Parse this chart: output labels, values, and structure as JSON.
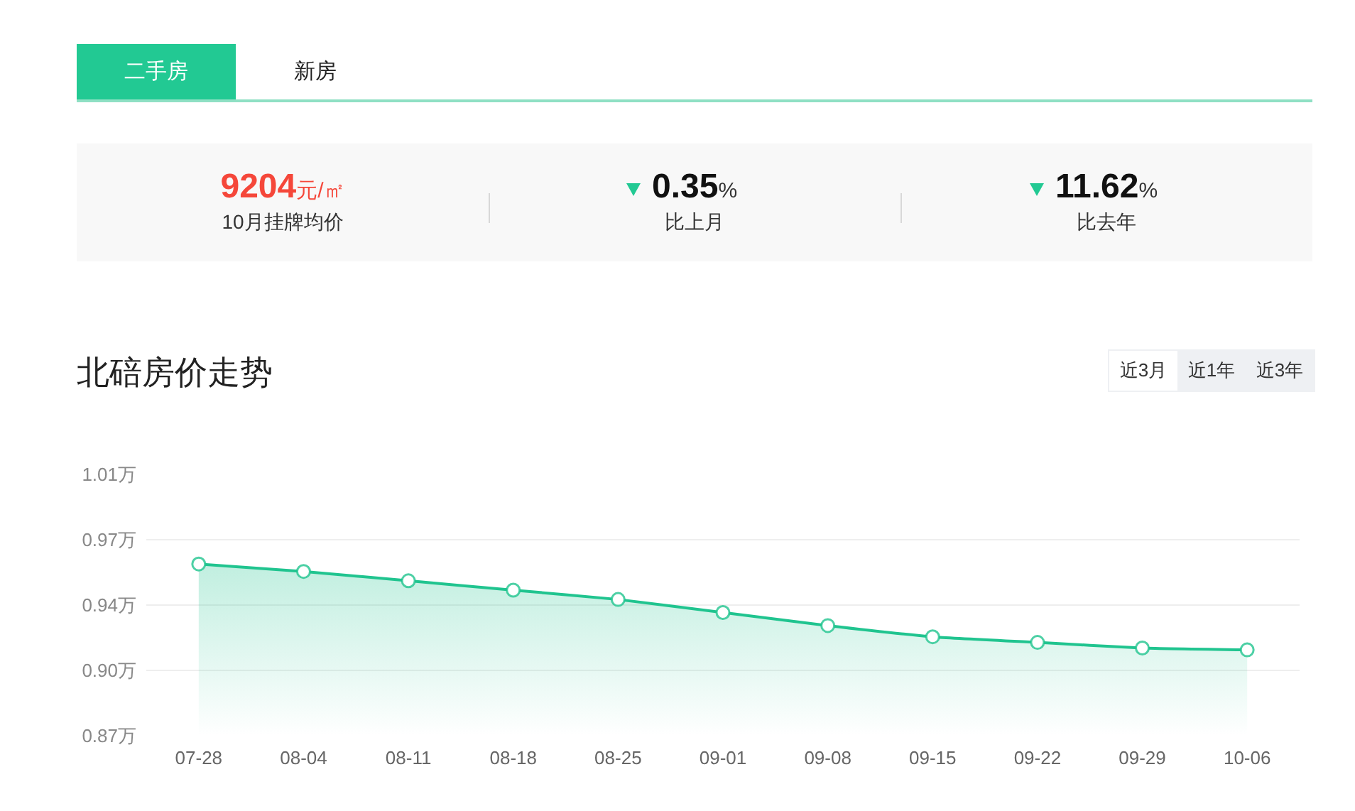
{
  "chart_data": [
    {
      "type": "other",
      "annotations": [
        "二手房",
        "新房",
        "9204元/㎡",
        "10月挂牌均价",
        "0.35%",
        "比上月",
        "11.62%",
        "比去年"
      ]
    },
    {
      "type": "area",
      "title": "北碚房价走势",
      "annotations": [
        "近3月",
        "近1年",
        "近3年"
      ],
      "categories": [
        "07-28",
        "08-04",
        "08-11",
        "08-18",
        "08-25",
        "09-01",
        "09-08",
        "09-15",
        "09-22",
        "09-29",
        "10-06"
      ],
      "values": [
        0.962,
        0.958,
        0.953,
        0.948,
        0.943,
        0.936,
        0.929,
        0.923,
        0.92,
        0.917,
        0.916
      ],
      "color": "#20c48f",
      "marker": "circle",
      "grid": "y",
      "ylim": [
        0.87,
        1.01
      ],
      "yticks": [
        {
          "value": 0.87,
          "label": "0.87万"
        },
        {
          "value": 0.905,
          "label": "0.90万"
        },
        {
          "value": 0.94,
          "label": "0.94万"
        },
        {
          "value": 0.975,
          "label": "0.97万"
        },
        {
          "value": 1.01,
          "label": "1.01万"
        }
      ]
    }
  ]
}
